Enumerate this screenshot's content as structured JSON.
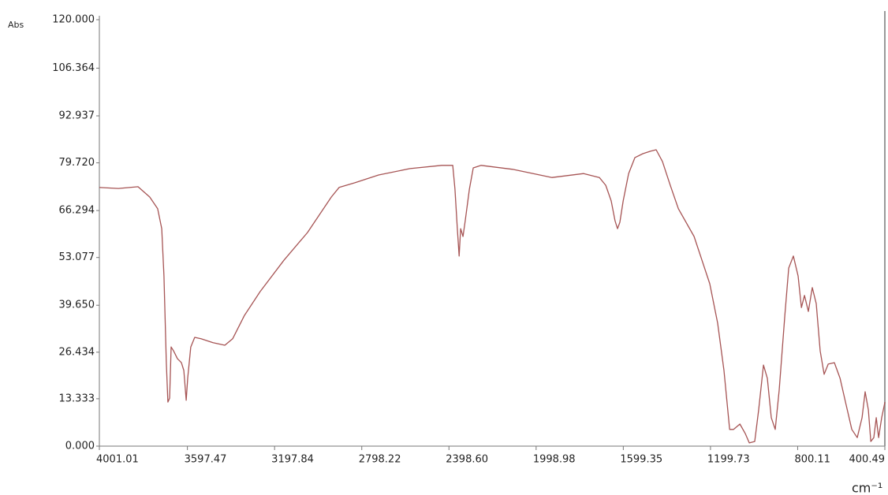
{
  "chart_data": {
    "type": "line",
    "y_label": "Abs",
    "x_label": "cm⁻¹",
    "color": "#a65454",
    "xlim": [
      4001.01,
      400.49
    ],
    "ylim": [
      0,
      120
    ],
    "xticks": [
      4001.01,
      3597.47,
      3197.84,
      2798.22,
      {
        "value": 2398.6,
        "label": "2398.60"
      },
      1998.98,
      1599.35,
      1199.73,
      800.11,
      400.49
    ],
    "yticks": [
      {
        "value": 0,
        "label": "0.000"
      },
      13.333,
      26.434,
      {
        "value": 39.65,
        "label": "39.650"
      },
      53.077,
      66.294,
      {
        "value": 79.72,
        "label": "79.720"
      },
      92.937,
      106.364,
      {
        "value": 120,
        "label": "120.000"
      }
    ],
    "x": [
      4001,
      3914,
      3824,
      3770,
      3734,
      3715,
      3705,
      3694,
      3687,
      3679,
      3672,
      3661,
      3643,
      3625,
      3614,
      3603,
      3596,
      3582,
      3564,
      3535,
      3480,
      3426,
      3390,
      3336,
      3264,
      3155,
      3047,
      2938,
      2902,
      2830,
      2721,
      2577,
      2432,
      2381,
      2371,
      2360,
      2352,
      2345,
      2334,
      2324,
      2305,
      2287,
      2251,
      2107,
      1926,
      1781,
      1709,
      1680,
      1655,
      1637,
      1626,
      1615,
      1600,
      1575,
      1546,
      1510,
      1474,
      1449,
      1420,
      1384,
      1347,
      1275,
      1203,
      1167,
      1138,
      1112,
      1094,
      1065,
      1040,
      1022,
      997,
      979,
      957,
      939,
      921,
      903,
      885,
      859,
      841,
      820,
      798,
      783,
      769,
      751,
      733,
      715,
      697,
      679,
      660,
      632,
      606,
      581,
      552,
      527,
      505,
      491,
      476,
      465,
      451,
      440,
      429,
      415,
      400
    ],
    "values": [
      72.8,
      72.5,
      73.0,
      70.1,
      66.8,
      61.2,
      47.9,
      23.5,
      12.4,
      13.5,
      27.9,
      26.8,
      24.6,
      23.5,
      21.3,
      12.9,
      19.1,
      27.9,
      30.6,
      30.2,
      29.1,
      28.4,
      30.2,
      36.8,
      43.5,
      52.3,
      60.1,
      70.1,
      72.8,
      74.1,
      76.3,
      78.1,
      79.0,
      79.0,
      72.3,
      61.2,
      53.5,
      61.2,
      59.0,
      63.4,
      72.3,
      78.3,
      79.0,
      77.9,
      75.6,
      76.7,
      75.6,
      73.4,
      69.0,
      63.4,
      61.2,
      63.0,
      69.0,
      76.7,
      81.2,
      82.3,
      83.0,
      83.4,
      80.1,
      73.4,
      66.8,
      59.0,
      45.7,
      34.6,
      21.3,
      4.7,
      4.7,
      6.2,
      3.5,
      0.9,
      1.3,
      10.2,
      22.8,
      19.1,
      8.0,
      4.7,
      15.7,
      36.8,
      50.1,
      53.5,
      47.9,
      39.0,
      42.4,
      37.9,
      44.6,
      40.1,
      26.8,
      20.2,
      23.1,
      23.5,
      19.1,
      12.4,
      4.7,
      2.4,
      8.0,
      15.3,
      10.2,
      1.3,
      2.4,
      8.0,
      2.4,
      8.0,
      12.4
    ]
  }
}
